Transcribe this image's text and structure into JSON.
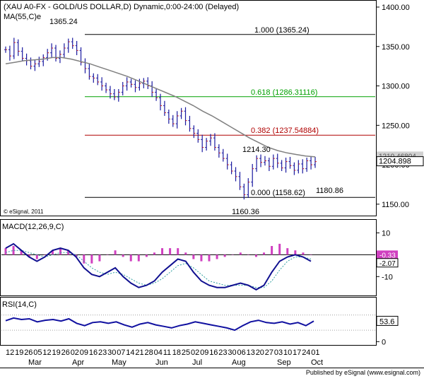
{
  "chart_data": [
    {
      "type": "ohlc",
      "title": "(XAU A0-FX - GOLD/US DOLLAR,D) Dynamic,0:00-24:00 (Delayed)",
      "ma_label": "MA(55,C)e",
      "credit": "© eSignal, 2011",
      "ylim": [
        1140,
        1400
      ],
      "yticks": [
        1150,
        1200,
        1250,
        1300,
        1350,
        1400
      ],
      "last_price": "1204.898",
      "ma_last_value": "1210.46804",
      "fib_levels": [
        {
          "label": "1.000 (1365.24)",
          "value": 1365.24,
          "color": "#000000"
        },
        {
          "label": "0.618 (1286.31116)",
          "value": 1286.31,
          "color": "#00a000"
        },
        {
          "label": "0.382 (1237.54884)",
          "value": 1237.55,
          "color": "#b00000"
        },
        {
          "label": "0.000 (1158.62)",
          "value": 1158.62,
          "color": "#000000"
        }
      ],
      "annotations": [
        {
          "text": "1365.24",
          "value": 1365.24
        },
        {
          "text": "1214.30",
          "value": 1214.3
        },
        {
          "text": "1180.86",
          "value": 1180.86
        },
        {
          "text": "1160.36",
          "value": 1160.36
        }
      ],
      "close_path": [
        1346,
        1338,
        1355,
        1344,
        1335,
        1332,
        1325,
        1328,
        1331,
        1336,
        1342,
        1348,
        1335,
        1340,
        1348,
        1356,
        1351,
        1345,
        1330,
        1322,
        1312,
        1310,
        1305,
        1300,
        1295,
        1290,
        1286,
        1292,
        1300,
        1305,
        1302,
        1298,
        1303,
        1306,
        1300,
        1292,
        1285,
        1275,
        1266,
        1258,
        1252,
        1262,
        1268,
        1256,
        1246,
        1240,
        1232,
        1222,
        1230,
        1234,
        1222,
        1215,
        1208,
        1200,
        1192,
        1185,
        1172,
        1162,
        1178,
        1195,
        1208,
        1203,
        1205,
        1198,
        1208,
        1202,
        1196,
        1204,
        1199,
        1193,
        1201,
        1195,
        1205,
        1200,
        1204
      ],
      "ma_path": [
        1328,
        1330,
        1332,
        1333,
        1334,
        1336,
        1336,
        1334,
        1331,
        1328,
        1324,
        1320,
        1316,
        1312,
        1307,
        1302,
        1297,
        1292,
        1287,
        1281,
        1275,
        1268,
        1262,
        1255,
        1248,
        1241,
        1234,
        1228,
        1222,
        1218,
        1215,
        1213,
        1211,
        1210
      ]
    },
    {
      "type": "line",
      "label": "MACD(12,26,9,C)",
      "ylim": [
        -18,
        15
      ],
      "yticks": [
        10,
        -10
      ],
      "macd_value": "-2.07",
      "signal_value": "-0.33",
      "macd_path": [
        3,
        5,
        2,
        -1,
        -3,
        -1,
        2,
        3,
        2,
        -1,
        -6,
        -9,
        -10,
        -8,
        -6,
        -10,
        -13,
        -15,
        -14,
        -12,
        -8,
        -5,
        -2,
        -3,
        -8,
        -12,
        -14,
        -15,
        -15,
        -14,
        -13,
        -14,
        -16,
        -14,
        -8,
        -3,
        -1,
        0,
        -1,
        -3
      ],
      "signal_path": [
        1,
        2,
        2,
        1,
        0,
        -1,
        0,
        1,
        1,
        0,
        -3,
        -6,
        -8,
        -9,
        -8,
        -9,
        -11,
        -13,
        -14,
        -13,
        -11,
        -8,
        -5,
        -4,
        -6,
        -9,
        -12,
        -13,
        -14,
        -14,
        -14,
        -14,
        -15,
        -15,
        -12,
        -7,
        -3,
        -1,
        -1,
        -2
      ],
      "hist": [
        3,
        4,
        2,
        -1,
        -2,
        0,
        2,
        3,
        2,
        -1,
        -4,
        -4,
        -3,
        0,
        2,
        -1,
        -3,
        -3,
        -1,
        1,
        3,
        3,
        3,
        1,
        -2,
        -3,
        -3,
        -2,
        -1,
        0,
        1,
        0,
        -1,
        1,
        4,
        5,
        3,
        2,
        1,
        0
      ]
    },
    {
      "type": "line",
      "label": "RSI(14,C)",
      "ylim": [
        -5,
        110
      ],
      "yticks": [
        50,
        0
      ],
      "value": "53.6",
      "rsi_path": [
        55,
        62,
        58,
        60,
        52,
        56,
        58,
        54,
        60,
        48,
        42,
        50,
        52,
        48,
        52,
        44,
        38,
        46,
        50,
        44,
        40,
        36,
        42,
        46,
        52,
        48,
        44,
        40,
        36,
        30,
        42,
        52,
        56,
        50,
        48,
        52,
        46,
        50,
        42,
        54
      ]
    }
  ],
  "x_axis": {
    "day_labels": [
      "12",
      "19",
      "26",
      "05",
      "12",
      "19",
      "26",
      "02",
      "09",
      "16",
      "23",
      "30",
      "07",
      "14",
      "21",
      "28",
      "04",
      "11",
      "18",
      "25",
      "02",
      "09",
      "16",
      "23",
      "30",
      "06",
      "13",
      "20",
      "27",
      "03",
      "10",
      "17",
      "24",
      "01"
    ],
    "month_labels": [
      "Mar",
      "Apr",
      "May",
      "Jun",
      "Jul",
      "Aug",
      "Sep",
      "Oct"
    ]
  },
  "footer": "Published by eSignal (www.esignal.com)"
}
